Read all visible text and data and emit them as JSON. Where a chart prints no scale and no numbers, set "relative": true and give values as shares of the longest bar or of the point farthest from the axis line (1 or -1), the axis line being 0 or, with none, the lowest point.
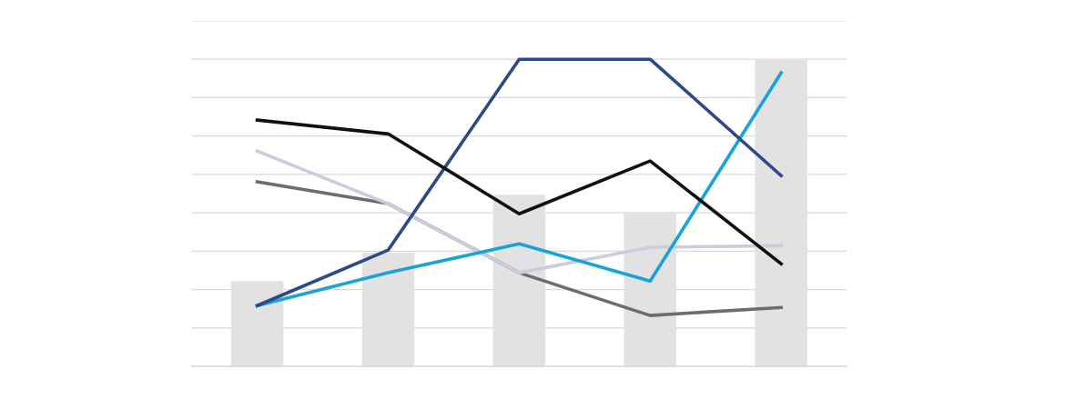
{
  "chart_data": [
    {
      "type": "bar",
      "relative": true,
      "grid": "y",
      "categories": [
        null,
        null,
        null,
        null,
        null
      ],
      "color": "#e3e2e3",
      "values": [
        0.278,
        0.37,
        0.559,
        0.503,
        1.0
      ]
    },
    {
      "type": "line",
      "relative": true,
      "categories": [
        null,
        null,
        null,
        null,
        null
      ],
      "marker": "none",
      "line_style": "solid",
      "series": [
        {
          "color": "#6d6d6d",
          "values": [
            0.601,
            0.53,
            0.305,
            0.166,
            0.192
          ]
        },
        {
          "color": "#c7cedd",
          "values": [
            0.701,
            0.53,
            0.305,
            0.388,
            0.393
          ]
        },
        {
          "color": "#1aa3d9",
          "values": [
            0.198,
            0.305,
            0.399,
            0.278,
            0.956
          ]
        },
        {
          "color": "#2e4a86",
          "values": [
            0.198,
            0.379,
            1.0,
            1.0,
            0.621
          ]
        },
        {
          "color": "#111111",
          "values": [
            0.802,
            0.757,
            0.497,
            0.669,
            0.334
          ]
        }
      ]
    }
  ]
}
